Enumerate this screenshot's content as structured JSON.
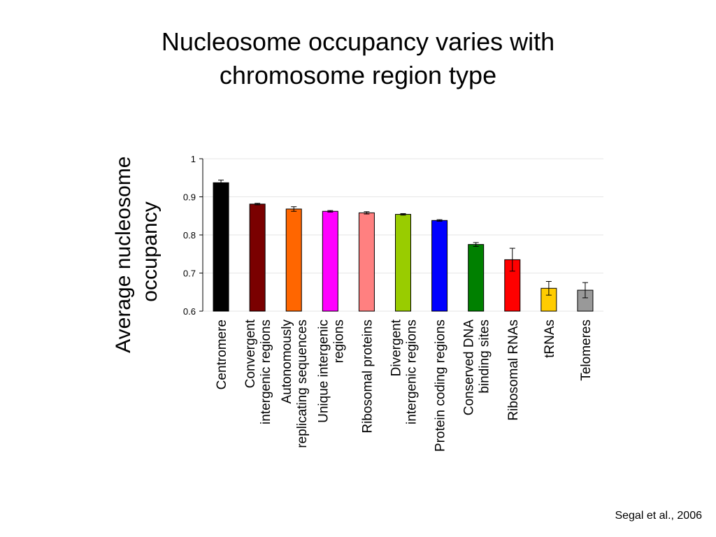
{
  "slide": {
    "title_line1": "Nucleosome occupancy varies with",
    "title_line2": "chromosome region type",
    "citation": "Segal et al., 2006"
  },
  "chart_data": {
    "type": "bar",
    "ylabel": "Average nucleosome occupancy",
    "ylabel_lines": [
      "Average nucleosome",
      "occupancy"
    ],
    "xlabel": "",
    "ylim": [
      0.6,
      1.0
    ],
    "yticks": [
      0.6,
      0.7,
      0.8,
      0.9,
      1
    ],
    "ytick_labels": [
      "0.6",
      "0.7",
      "0.8",
      "0.9",
      "1"
    ],
    "grid": true,
    "legend": "none",
    "categories": [
      "Centromere",
      "Convergent intergenic regions",
      "Autonomously replicating sequences",
      "Unique intergenic regions",
      "Ribosomal proteins",
      "Divergent intergenic regions",
      "Protein coding regions",
      "Conserved DNA binding sites",
      "Ribosomal RNAs",
      "tRNAs",
      "Telomeres"
    ],
    "category_label_lines": [
      [
        "Centromere"
      ],
      [
        "Convergent",
        "intergenic regions"
      ],
      [
        "Autonomously",
        "replicating sequences"
      ],
      [
        "Unique intergenic",
        "regions"
      ],
      [
        "Ribosomal proteins"
      ],
      [
        "Divergent",
        "intergenic regions"
      ],
      [
        "Protein coding regions"
      ],
      [
        "Conserved DNA",
        "binding sites"
      ],
      [
        "Ribosomal RNAs"
      ],
      [
        "tRNAs"
      ],
      [
        "Telomeres"
      ]
    ],
    "values": [
      0.937,
      0.881,
      0.868,
      0.862,
      0.858,
      0.854,
      0.838,
      0.775,
      0.735,
      0.66,
      0.655
    ],
    "errors": [
      0.007,
      0.002,
      0.006,
      0.002,
      0.003,
      0.002,
      0.002,
      0.005,
      0.03,
      0.018,
      0.02
    ],
    "colors": [
      "#000000",
      "#7a0000",
      "#ff6600",
      "#ff00ff",
      "#ff8080",
      "#99cc00",
      "#0000ff",
      "#008000",
      "#ff0000",
      "#ffcc00",
      "#999999"
    ]
  }
}
